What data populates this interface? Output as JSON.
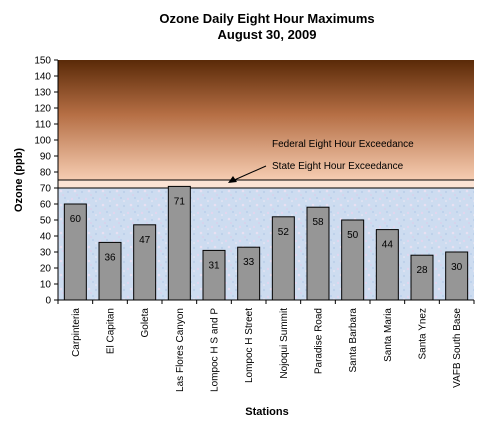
{
  "chart_data": {
    "type": "bar",
    "title": "Ozone Daily Eight Hour Maximums",
    "subtitle": "August 30, 2009",
    "xlabel": "Stations",
    "ylabel": "Ozone (ppb)",
    "ylim": [
      0,
      150
    ],
    "yticks": [
      0,
      10,
      20,
      30,
      40,
      50,
      60,
      70,
      80,
      90,
      100,
      110,
      120,
      130,
      140,
      150
    ],
    "categories": [
      "Carpinteria",
      "El Capitan",
      "Goleta",
      "Las Flores Canyon",
      "Lompoc H S and P",
      "Lompoc H Street",
      "Nojoqui Summit",
      "Paradise Road",
      "Santa Barbara",
      "Santa Maria",
      "Santa Ynez",
      "VAFB South Base"
    ],
    "values": [
      60,
      36,
      47,
      71,
      31,
      33,
      52,
      58,
      50,
      44,
      28,
      30
    ],
    "data_labels": [
      "60",
      "36",
      "47",
      "71",
      "31",
      "33",
      "52",
      "58",
      "50",
      "44",
      "28",
      "30"
    ],
    "thresholds": [
      {
        "label": "Federal Eight Hour Exceedance",
        "value": 75
      },
      {
        "label": "State Eight Hour Exceedance",
        "value": 70
      }
    ],
    "legend": "none",
    "grid": false,
    "colors": {
      "bar_fill": "#969696",
      "bar_stroke": "#000000",
      "band_low": "#c9dcf2",
      "band_high_top": "#5a2a08",
      "band_high_bottom": "#f3c6a8"
    }
  }
}
